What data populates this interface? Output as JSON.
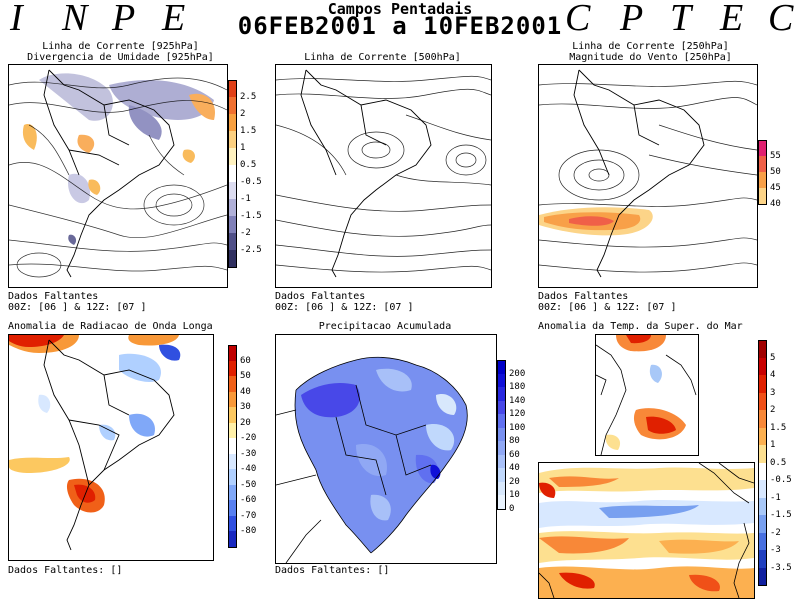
{
  "header": {
    "left_letters": [
      "I",
      "N",
      "P",
      "E"
    ],
    "right_letters": [
      "C",
      "P",
      "T",
      "E",
      "C"
    ],
    "title": "Campos Pentadais",
    "period": "06FEB2001 a 10FEB2001"
  },
  "panels": {
    "p1": {
      "title1": "Linha de Corrente [925hPa]",
      "title2": "Divergencia de Umidade [925hPa]",
      "foot1": "Dados Faltantes",
      "foot2": "00Z: [06 ] & 12Z: [07 ]"
    },
    "p2": {
      "title1": "Linha de Corrente [500hPa]",
      "foot1": "Dados Faltantes",
      "foot2": "00Z: [06 ] & 12Z: [07 ]"
    },
    "p3": {
      "title1": "Linha de Corrente [250hPa]",
      "title2": "Magnitude do Vento [250hPa]",
      "foot1": "Dados Faltantes",
      "foot2": "00Z: [06 ] & 12Z: [07 ]"
    },
    "p4": {
      "title1": "Anomalia de Radiacao de Onda Longa",
      "foot1": "Dados Faltantes: []"
    },
    "p5": {
      "title1": "Precipitacao Acumulada",
      "foot1": "Dados Faltantes: []"
    },
    "p6": {
      "title1": "Anomalia da Temp. da Super. do Mar"
    }
  },
  "colorbars": {
    "div": {
      "labels": [
        "2.5",
        "2",
        "1.5",
        "1",
        "0.5",
        "-0.5",
        "-1",
        "-1.5",
        "-2",
        "-2.5"
      ],
      "colors": [
        "#e04018",
        "#f07030",
        "#f8a040",
        "#fcd080",
        "#fff2c0",
        "#ffffff",
        "#dcdcf0",
        "#b0b0d8",
        "#8080b8",
        "#505088",
        "#303060"
      ]
    },
    "wind": {
      "labels": [
        "55",
        "50",
        "45",
        "40"
      ],
      "colors": [
        "#e02070",
        "#f06048",
        "#f8a048",
        "#fcd488"
      ]
    },
    "olr": {
      "labels": [
        "60",
        "50",
        "40",
        "30",
        "20",
        "-20",
        "-30",
        "-40",
        "-50",
        "-60",
        "-70",
        "-80"
      ],
      "colors": [
        "#c00000",
        "#e02000",
        "#f06018",
        "#f89838",
        "#fcc860",
        "#fff0a8",
        "#ffffff",
        "#d8e8ff",
        "#b0d0ff",
        "#80a8f8",
        "#5880f0",
        "#3050e0",
        "#1828c0"
      ]
    },
    "prec": {
      "labels": [
        "200",
        "180",
        "140",
        "120",
        "100",
        "80",
        "60",
        "40",
        "20",
        "10",
        "0"
      ],
      "colors": [
        "#0000c8",
        "#1010d8",
        "#2828e0",
        "#4848e8",
        "#6070f0",
        "#7890f0",
        "#90a8f4",
        "#a8c0f8",
        "#c0d8fc",
        "#d8e8fc",
        "#eaf4ff"
      ]
    },
    "sst": {
      "labels": [
        "5",
        "4",
        "3",
        "2",
        "1.5",
        "1",
        "0.5",
        "-0.5",
        "-1",
        "-1.5",
        "-2",
        "-3",
        "-3.5"
      ],
      "colors": [
        "#a00000",
        "#c80000",
        "#e02000",
        "#f05018",
        "#f88838",
        "#fcb050",
        "#fde090",
        "#ffffff",
        "#d8e8ff",
        "#a8c8f8",
        "#78a0f0",
        "#4870e0",
        "#2040c0",
        "#1020a0"
      ]
    }
  }
}
